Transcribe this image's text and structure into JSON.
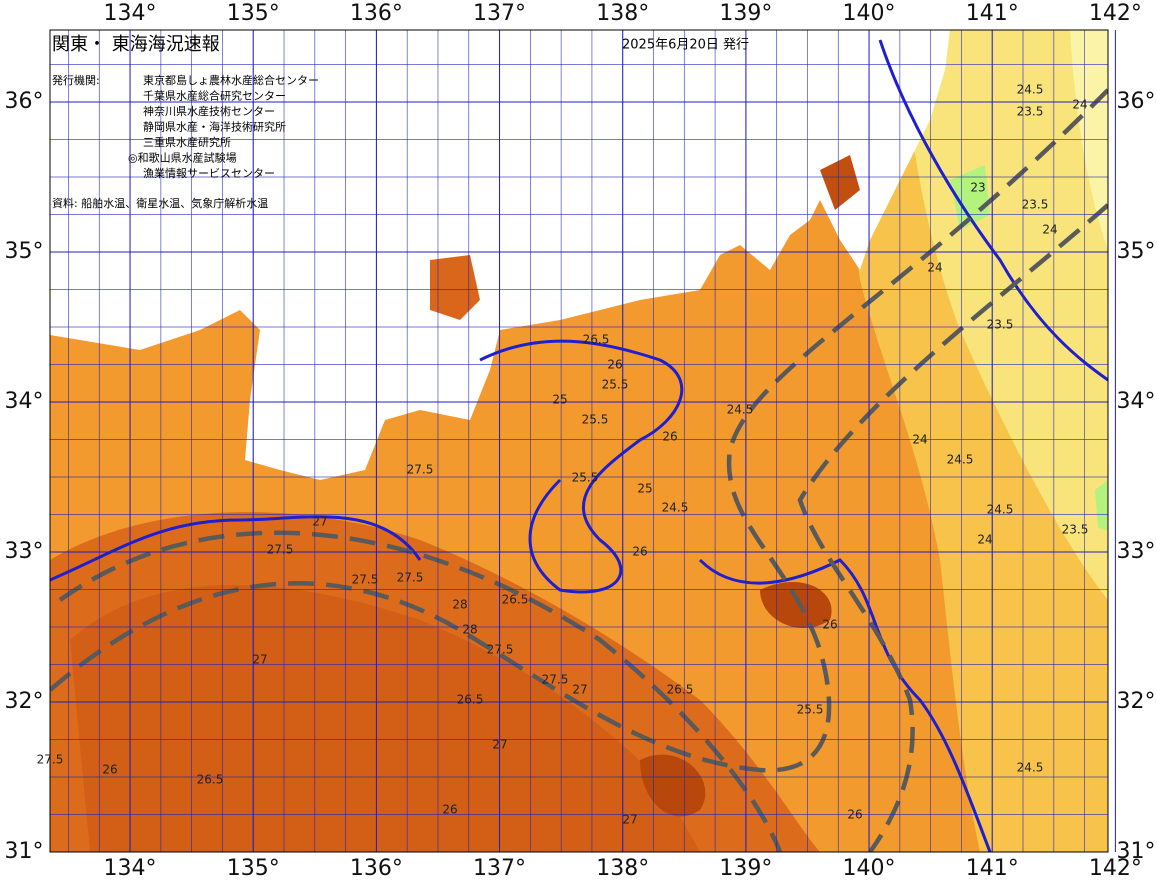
{
  "map": {
    "title": "関東・ 東海海況速報",
    "issue_date": "2025年6月20日 発行",
    "agencies_label": "発行機関:",
    "agencies": [
      "東京都島しょ農林水産総合センター",
      "千葉県水産総合研究センター",
      "神奈川県水産技術センター",
      "静岡県水産・海洋技術研究所",
      "三重県水産研究所",
      "◎和歌山県水産試験場",
      "漁業情報サービスセンター"
    ],
    "source": "資料: 船舶水温、衛星水温、気象庁解析水温",
    "lonlim": [
      133.35,
      141.94
    ],
    "latlim": [
      31,
      36.48
    ],
    "lonticks": [
      {
        "value": 134,
        "label": "134°"
      },
      {
        "value": 135,
        "label": "135°"
      },
      {
        "value": 136,
        "label": "136°"
      },
      {
        "value": 137,
        "label": "137°"
      },
      {
        "value": 138,
        "label": "138°"
      },
      {
        "value": 139,
        "label": "139°"
      },
      {
        "value": 140,
        "label": "140°"
      },
      {
        "value": 141,
        "label": "141°"
      },
      {
        "value": 142,
        "label": "142°"
      }
    ],
    "latticks": [
      {
        "value": 31,
        "label": "31°"
      },
      {
        "value": 32,
        "label": "32°"
      },
      {
        "value": 33,
        "label": "33°"
      },
      {
        "value": 34,
        "label": "34°"
      },
      {
        "value": 35,
        "label": "35°"
      },
      {
        "value": 36,
        "label": "36°"
      }
    ],
    "contour_labels": [
      "24.5",
      "23.5",
      "24",
      "23",
      "23.5",
      "24",
      "24",
      "23.5",
      "24",
      "26.5",
      "26",
      "25.5",
      "25",
      "25.5",
      "26",
      "24.5",
      "25",
      "25.5",
      "24.5",
      "26",
      "27",
      "27.5",
      "27.5",
      "28",
      "27.5",
      "28",
      "27",
      "27.5",
      "26.5",
      "27",
      "26",
      "27.5",
      "26.5",
      "26",
      "27",
      "26.5",
      "25.5",
      "24.5",
      "24.5",
      "23.5",
      "24",
      "26",
      "27.5",
      "26.5",
      "27",
      "27.5",
      "26",
      "24.5"
    ]
  }
}
